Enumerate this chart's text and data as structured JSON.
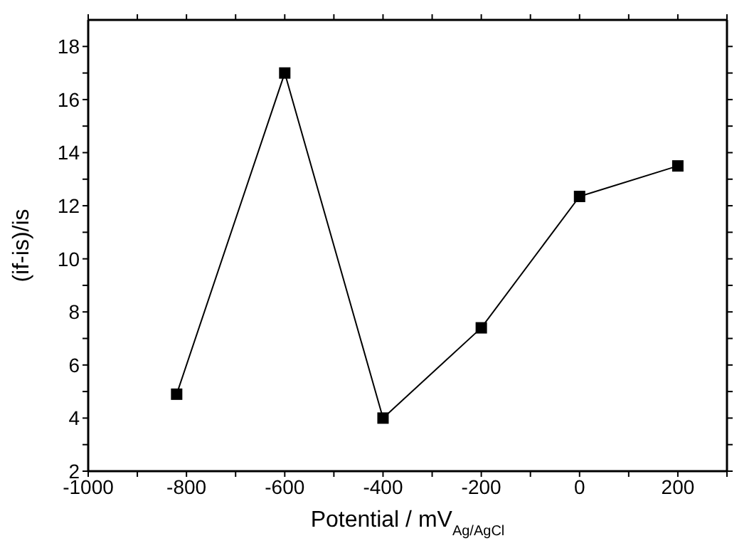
{
  "chart_data": {
    "type": "line",
    "xlabel": "Potential / mV$_{Ag/AgCl}$",
    "ylabel": "(if-is)/is",
    "x": [
      -820,
      -600,
      -400,
      -200,
      0,
      200
    ],
    "series": [
      {
        "color": "#000000",
        "values": [
          4.9,
          17,
          4,
          7.4,
          12.35,
          13.5
        ]
      }
    ],
    "xlim": [
      -1000,
      300
    ],
    "xticks": [
      -1000,
      {
        "value": -900,
        "label": null
      },
      -800,
      {
        "value": -700,
        "label": null
      },
      -600,
      {
        "value": -500,
        "label": null
      },
      -400,
      {
        "value": -300,
        "label": null
      },
      -200,
      {
        "value": -100,
        "label": null
      },
      0,
      {
        "value": 100,
        "label": null
      },
      200,
      {
        "value": 300,
        "label": null
      }
    ],
    "ylim": [
      2,
      19
    ],
    "yticks": [
      2,
      {
        "value": 3,
        "label": null
      },
      4,
      {
        "value": 5,
        "label": null
      },
      6,
      {
        "value": 7,
        "label": null
      },
      8,
      {
        "value": 9,
        "label": null
      },
      10,
      {
        "value": 11,
        "label": null
      },
      12,
      {
        "value": 13,
        "label": null
      },
      14,
      {
        "value": 15,
        "label": null
      },
      16,
      {
        "value": 17,
        "label": null
      },
      18
    ],
    "grid": false,
    "marker": "square",
    "line_style": "solid",
    "legend": false
  }
}
